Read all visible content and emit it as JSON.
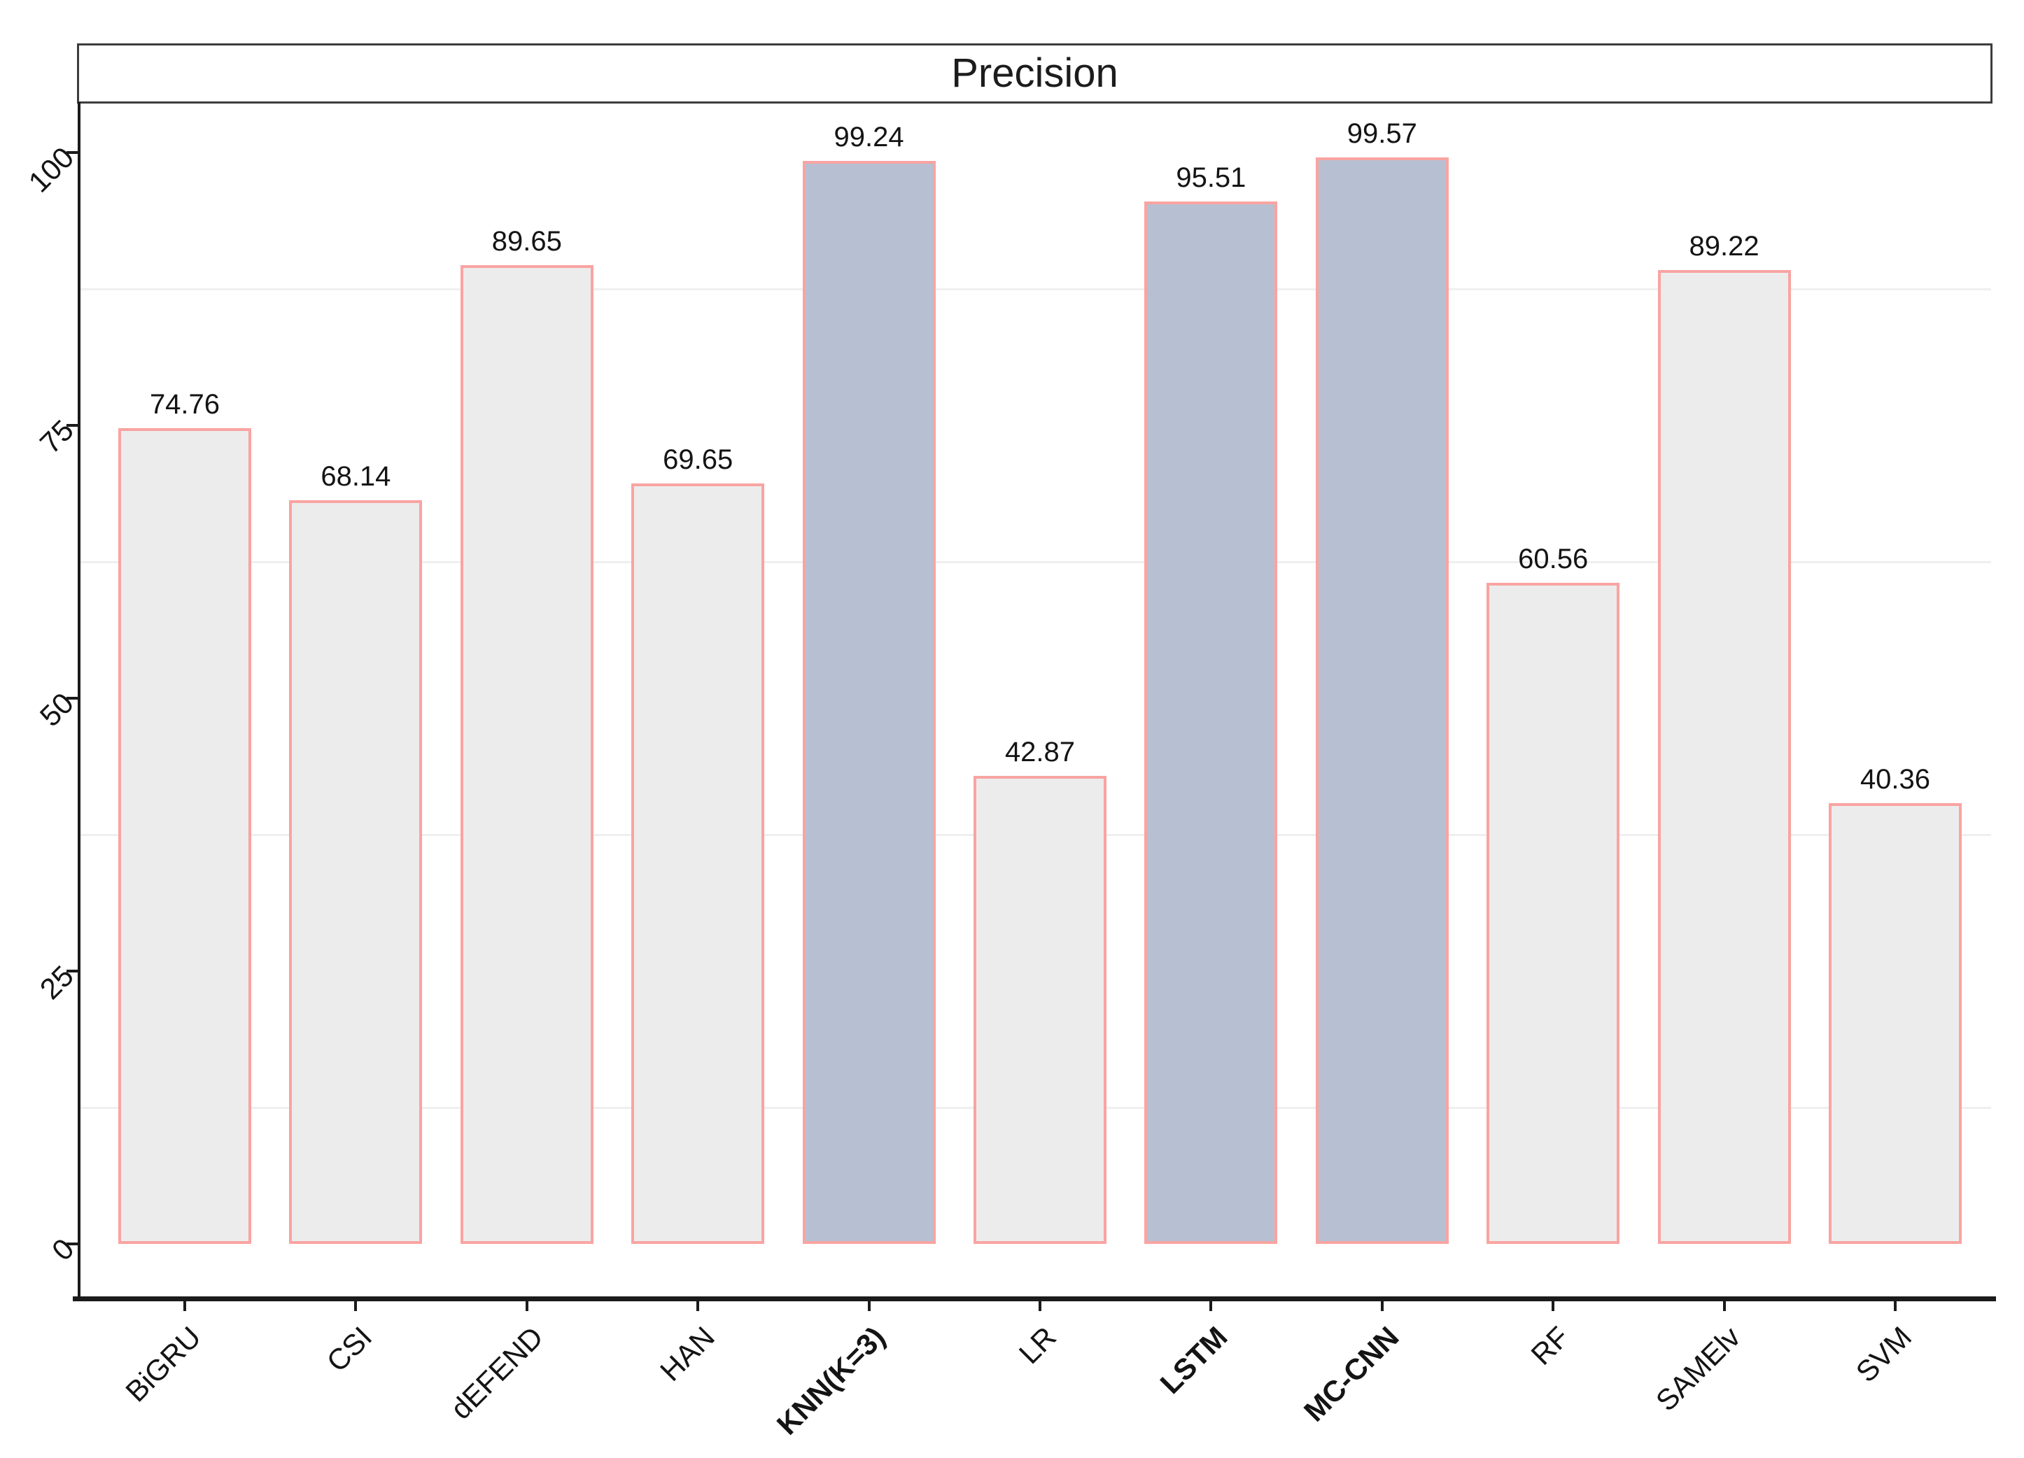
{
  "title": "Precision",
  "chart_data": {
    "type": "bar",
    "title": "Precision",
    "categories": [
      "BiGRU",
      "CSI",
      "dEFEND",
      "HAN",
      "KNN(K=3)",
      "LR",
      "LSTM",
      "MC-CNN",
      "RF",
      "SAMElv",
      "SVM"
    ],
    "values": [
      74.76,
      68.14,
      89.65,
      69.65,
      99.24,
      42.87,
      95.51,
      99.57,
      60.56,
      89.22,
      40.36
    ],
    "value_labels": [
      "74.76",
      "68.14",
      "89.65",
      "69.65",
      "99.24",
      "42.87",
      "95.51",
      "99.57",
      "60.56",
      "89.22",
      "40.36"
    ],
    "highlighted_categories": [
      "KNN(K=3)",
      "LSTM",
      "MC-CNN"
    ],
    "xlabel": "",
    "ylabel": "",
    "ylim": [
      0,
      104.6
    ],
    "y_ticks": [
      0,
      25,
      50,
      75,
      100
    ],
    "y_minor_gridlines": [
      12.5,
      37.5,
      62.5,
      87.5
    ],
    "grid": "minor-horizontal-only",
    "legend_position": "none",
    "colors": {
      "bar_fill_default": "#EDECEC",
      "bar_fill_highlight": "#B7C0D2",
      "bar_border": "#F9A4A2",
      "minor_gridline": "#EFEFEF",
      "axis_line": "#1B1B1B",
      "title_border": "#3D3D3D",
      "text": "#141414",
      "background": "#FFFFFF"
    }
  }
}
